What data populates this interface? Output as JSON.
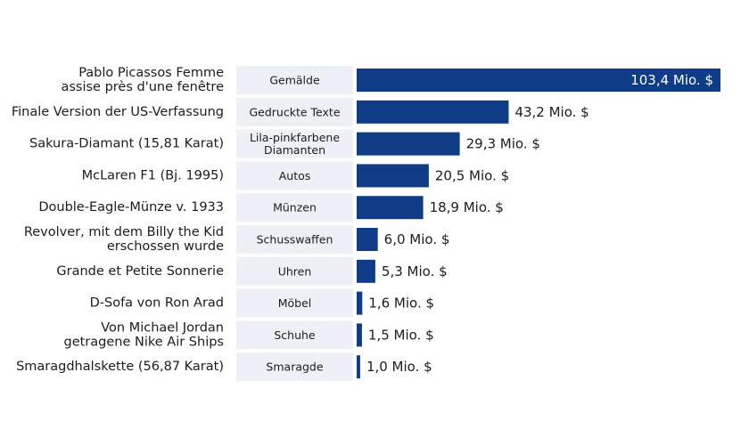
{
  "chart_data": {
    "type": "bar",
    "orientation": "horizontal",
    "title": "",
    "xlabel": "",
    "ylabel": "",
    "xlim": [
      0,
      103.4
    ],
    "grid": false,
    "legend": "none",
    "colors": {
      "bar": "#0f3c87",
      "category_box": "#edf0f6",
      "text": "#1c1c1c",
      "bar_label_inside": "#ffffff"
    },
    "items": [
      {
        "label": [
          "Pablo Picassos Femme",
          "assise près d'une fenêtre"
        ],
        "category": [
          "Gemälde"
        ],
        "value": 103.4,
        "value_label": "103,4 Mio. $"
      },
      {
        "label": [
          "Finale Version der US-Verfassung"
        ],
        "category": [
          "Gedruckte Texte"
        ],
        "value": 43.2,
        "value_label": "43,2 Mio. $"
      },
      {
        "label": [
          "Sakura-Diamant (15,81 Karat)"
        ],
        "category": [
          "Lila-pinkfarbene",
          "Diamanten"
        ],
        "value": 29.3,
        "value_label": "29,3 Mio. $"
      },
      {
        "label": [
          "McLaren F1 (Bj. 1995)"
        ],
        "category": [
          "Autos"
        ],
        "value": 20.5,
        "value_label": "20,5 Mio. $"
      },
      {
        "label": [
          "Double-Eagle-Münze v. 1933"
        ],
        "category": [
          "Münzen"
        ],
        "value": 18.9,
        "value_label": "18,9 Mio. $"
      },
      {
        "label": [
          "Revolver, mit dem Billy the Kid",
          "erschossen wurde"
        ],
        "category": [
          "Schusswaffen"
        ],
        "value": 6.0,
        "value_label": "6,0 Mio. $"
      },
      {
        "label": [
          "Grande et Petite Sonnerie"
        ],
        "category": [
          "Uhren"
        ],
        "value": 5.3,
        "value_label": "5,3 Mio. $"
      },
      {
        "label": [
          "D-Sofa von Ron Arad"
        ],
        "category": [
          "Möbel"
        ],
        "value": 1.6,
        "value_label": "1,6 Mio. $"
      },
      {
        "label": [
          "Von Michael Jordan",
          "getragene Nike Air Ships"
        ],
        "category": [
          "Schuhe"
        ],
        "value": 1.5,
        "value_label": "1,5 Mio. $"
      },
      {
        "label": [
          "Smaragdhalskette (56,87 Karat)"
        ],
        "category": [
          "Smaragde"
        ],
        "value": 1.0,
        "value_label": "1,0 Mio. $"
      }
    ]
  }
}
